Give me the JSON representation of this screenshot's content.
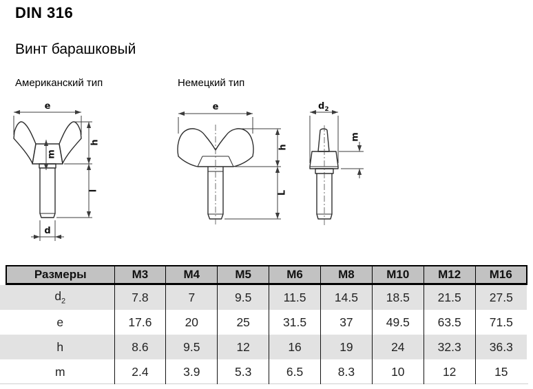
{
  "header": {
    "title": "DIN 316",
    "subtitle": "Винт барашковый",
    "american_label": "Американский тип",
    "german_label": "Немецкий тип"
  },
  "drawing": {
    "labels": {
      "e_us": "e",
      "h_us": "h",
      "l_us": "l",
      "m_us": "m",
      "d_us": "d",
      "e_de": "e",
      "h_de": "h",
      "l_de": "L",
      "d2_main": "d",
      "d2_sub": "2",
      "m_side": "m"
    }
  },
  "table": {
    "header": [
      "Размеры",
      "M3",
      "M4",
      "M5",
      "M6",
      "M8",
      "M10",
      "M12",
      "M16"
    ],
    "rows": [
      {
        "label": "d",
        "label_sub": "2",
        "values": [
          "7.8",
          "7",
          "9.5",
          "11.5",
          "14.5",
          "18.5",
          "21.5",
          "27.5"
        ]
      },
      {
        "label": "e",
        "values": [
          "17.6",
          "20",
          "25",
          "31.5",
          "37",
          "49.5",
          "63.5",
          "71.5"
        ]
      },
      {
        "label": "h",
        "values": [
          "8.6",
          "9.5",
          "12",
          "16",
          "19",
          "24",
          "32.3",
          "36.3"
        ]
      },
      {
        "label": "m",
        "values": [
          "2.4",
          "3.9",
          "5.3",
          "6.5",
          "8.3",
          "10",
          "12",
          "15"
        ]
      }
    ],
    "colors": {
      "header_bg": "#c2c2c2",
      "stripe_bg": "#e2e2e2",
      "border": "#000000"
    }
  }
}
